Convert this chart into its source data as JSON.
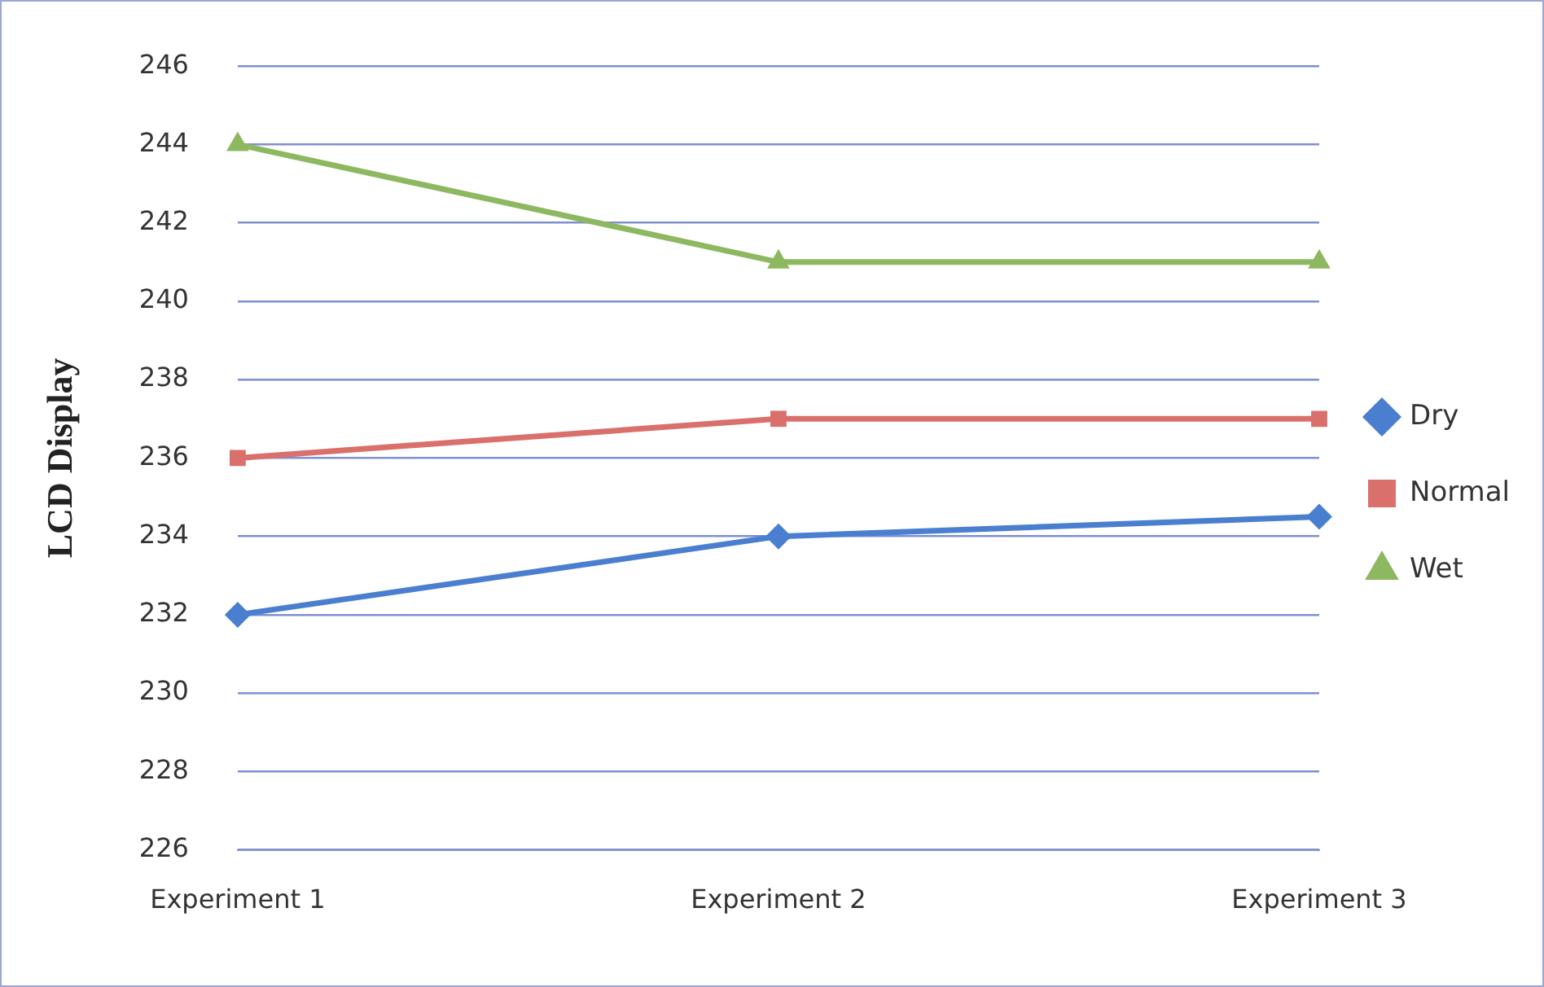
{
  "chart_data": {
    "type": "line",
    "ylabel": "LCD Display",
    "categories": [
      "Experiment 1",
      "Experiment 2",
      "Experiment 3"
    ],
    "series": [
      {
        "name": "Dry",
        "color": "#4a7fd0",
        "values": [
          232,
          234,
          234.5
        ],
        "marker": "diamond"
      },
      {
        "name": "Normal",
        "color": "#d9706c",
        "values": [
          236,
          237,
          237
        ],
        "marker": "square"
      },
      {
        "name": "Wet",
        "color": "#8db860",
        "values": [
          244,
          241,
          241
        ],
        "marker": "triangle"
      }
    ],
    "ylim": [
      226,
      246
    ],
    "yticks": [
      226,
      228,
      230,
      232,
      234,
      236,
      238,
      240,
      242,
      244,
      246
    ],
    "grid": "y",
    "legend": "right"
  }
}
